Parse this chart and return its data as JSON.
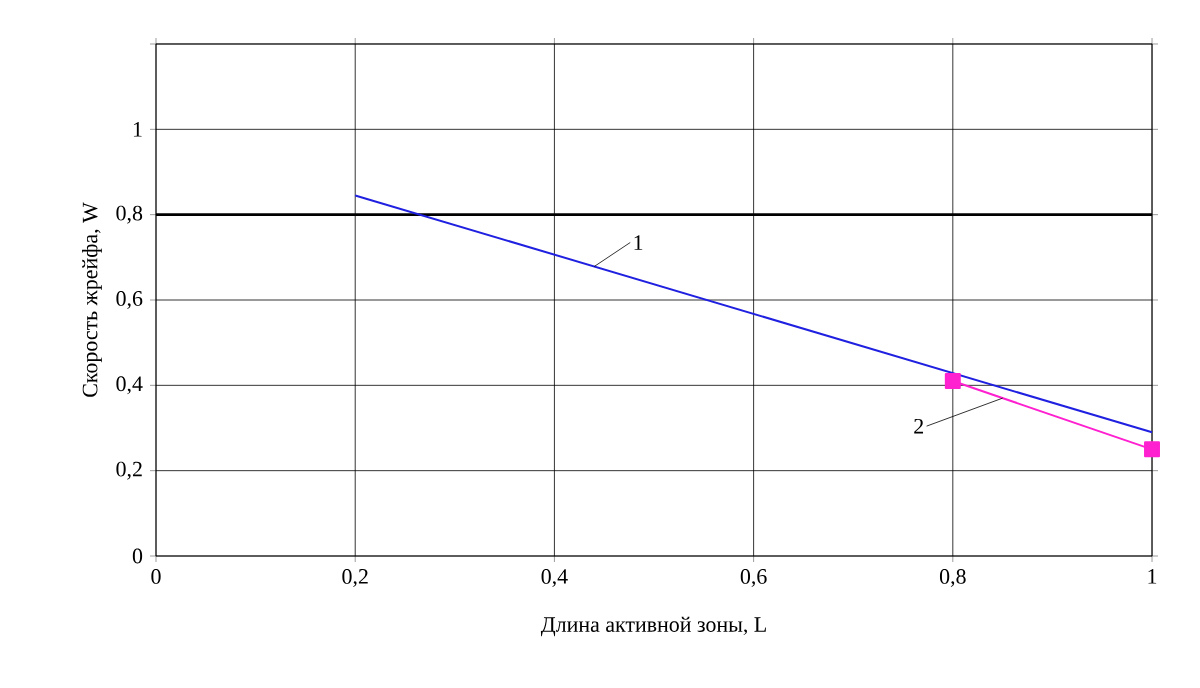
{
  "chart_data": {
    "type": "line",
    "xlabel": "Длина активной зоны, L",
    "ylabel": "Скорость жрейфа, W",
    "x": [
      0.2,
      1
    ],
    "series": [
      {
        "name": "1",
        "color": "#2020e0",
        "values": [
          0.845,
          0.29
        ],
        "marker": "none"
      },
      {
        "name": "2",
        "color": "#ff20d0",
        "x": [
          0.8,
          1
        ],
        "values": [
          0.41,
          0.25
        ],
        "marker": "square"
      }
    ],
    "xlim": [
      0,
      1
    ],
    "xticks": [
      {
        "value": 0,
        "label": "0"
      },
      {
        "value": 0.2,
        "label": "0,2"
      },
      {
        "value": 0.4,
        "label": "0,4"
      },
      {
        "value": 0.6,
        "label": "0,6"
      },
      {
        "value": 0.8,
        "label": "0,8"
      },
      {
        "value": 1,
        "label": "1"
      }
    ],
    "ylim": [
      0,
      1.2
    ],
    "yticks": [
      {
        "value": 0,
        "label": "0"
      },
      {
        "value": 0.2,
        "label": "0,2"
      },
      {
        "value": 0.4,
        "label": "0,4"
      },
      {
        "value": 0.6,
        "label": "0,6"
      },
      {
        "value": 0.8,
        "label": "0,8"
      },
      {
        "value": 1,
        "label": "1"
      },
      {
        "value": 1.2,
        "label": null
      }
    ],
    "ref_lines": [
      {
        "axis": "y",
        "value": 0.8,
        "color": "#000000"
      }
    ],
    "grid": true
  }
}
